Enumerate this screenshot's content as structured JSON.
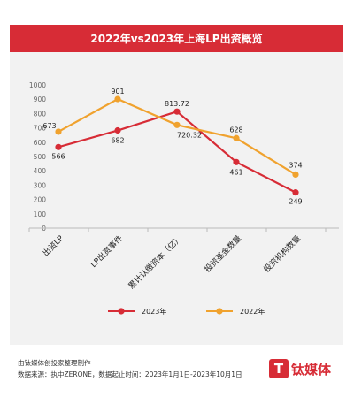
{
  "header": {
    "title": "2022年vs2023年上海LP出资概览"
  },
  "footer": {
    "line1": "由钛媒体创投家整理制作",
    "line2": "数据来源：执中ZERONE，数据起止时间：2023年1月1日-2023年10月1日"
  },
  "logo": {
    "text": "钛媒体",
    "mark": "T"
  },
  "colors": {
    "accent": "#d72c36",
    "series_2023": "#d72c36",
    "series_2022": "#f0a22e"
  },
  "chart_data": {
    "type": "line",
    "title": "2022年vs2023年上海LP出资概览",
    "categories": [
      "出资LP",
      "LP出资事件",
      "累计认缴资本（亿）",
      "投资基金数量",
      "投资机构数量"
    ],
    "ylim": [
      0,
      1000
    ],
    "yticks": [
      0,
      100,
      200,
      300,
      400,
      500,
      600,
      700,
      800,
      900,
      1000
    ],
    "grid": false,
    "legend_position": "bottom",
    "series": [
      {
        "name": "2023年",
        "color": "#d72c36",
        "values": [
          566,
          682,
          813.72,
          461,
          249
        ],
        "labels": [
          "566",
          "682",
          "813.72",
          "461",
          "249"
        ]
      },
      {
        "name": "2022年",
        "color": "#f0a22e",
        "values": [
          673,
          901,
          720.32,
          628,
          374
        ],
        "labels": [
          "673",
          "901",
          "720.32",
          "628",
          "374"
        ]
      }
    ]
  }
}
